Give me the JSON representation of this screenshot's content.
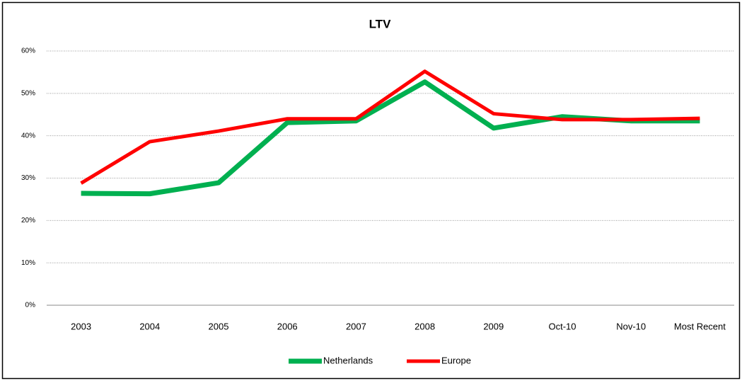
{
  "chart_data": {
    "type": "line",
    "title": "LTV",
    "categories": [
      "2003",
      "2004",
      "2005",
      "2006",
      "2007",
      "2008",
      "2009",
      "Oct-10",
      "Nov-10",
      "Most Recent"
    ],
    "series": [
      {
        "name": "Netherlands",
        "color": "#00b050",
        "values": [
          26.4,
          26.3,
          28.9,
          43.1,
          43.5,
          52.7,
          41.8,
          44.5,
          43.5,
          43.5
        ]
      },
      {
        "name": "Europe",
        "color": "#ff0000",
        "values": [
          28.8,
          38.6,
          41.1,
          44.0,
          44.0,
          55.2,
          45.2,
          43.8,
          43.8,
          44.1
        ]
      }
    ],
    "ylim": [
      0,
      60
    ],
    "yticks": [
      {
        "value": 0,
        "label": "0%"
      },
      {
        "value": 10,
        "label": "10%"
      },
      {
        "value": 20,
        "label": "20%"
      },
      {
        "value": 30,
        "label": "30%"
      },
      {
        "value": 40,
        "label": "40%"
      },
      {
        "value": 50,
        "label": "50%"
      },
      {
        "value": 60,
        "label": "60%"
      }
    ],
    "grid": true,
    "legend": "bottom"
  }
}
